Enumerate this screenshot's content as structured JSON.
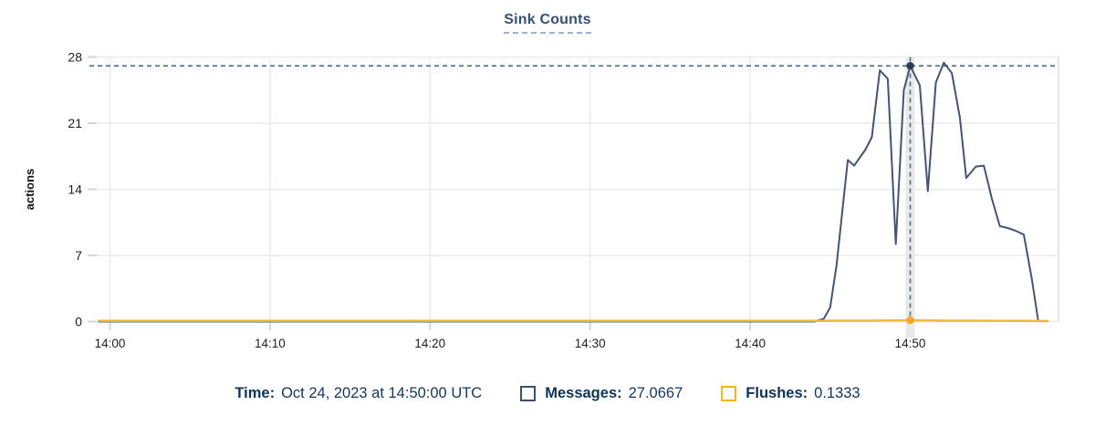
{
  "title": "Sink Counts",
  "colors": {
    "messages_line": "#455571",
    "messages_marker": "#2e3d55",
    "flushes_line": "#f2b632",
    "flushes_marker": "#f5a623",
    "crosshair": "#4d6e86",
    "grid": "#efefef",
    "grid_stub": "#d7d7d7",
    "right_border": "#e6e6e6",
    "hover_band": "#e9e9e9",
    "axis_text": "#1f1f1f",
    "title_text": "#37506f",
    "legend_text": "#12355b"
  },
  "y_axis": {
    "label": "actions",
    "ticks": [
      0,
      7,
      14,
      21,
      28
    ],
    "min": 0,
    "max": 28
  },
  "x_axis": {
    "ticks": [
      {
        "t": 0,
        "label": "14:00"
      },
      {
        "t": 10,
        "label": "14:10"
      },
      {
        "t": 20,
        "label": "14:20"
      },
      {
        "t": 30,
        "label": "14:30"
      },
      {
        "t": 40,
        "label": "14:40"
      },
      {
        "t": 50,
        "label": "14:50"
      }
    ]
  },
  "tooltip": {
    "time_label": "Time:",
    "time_value": "Oct 24, 2023 at 14:50:00 UTC",
    "series": [
      {
        "name": "Messages",
        "label": "Messages:",
        "value": "27.0667",
        "swatch_color": "#3c5169"
      },
      {
        "name": "Flushes",
        "label": "Flushes:",
        "value": "0.1333",
        "swatch_color": "#f7b500"
      }
    ]
  },
  "chart_data": {
    "type": "line",
    "title": "Sink Counts",
    "ylabel": "actions",
    "ylim": [
      0,
      28
    ],
    "x_unit": "minutes after 14:00 UTC, Oct 24 2023",
    "legend_position": "bottom",
    "grid": true,
    "hover": {
      "t": 50,
      "time": "Oct 24, 2023 at 14:50:00 UTC",
      "messages": 27.0667,
      "flushes": 0.1333
    },
    "series": [
      {
        "name": "Messages",
        "points": [
          [
            -0.7,
            0
          ],
          [
            5,
            0
          ],
          [
            10,
            0
          ],
          [
            15,
            0
          ],
          [
            20,
            0
          ],
          [
            25,
            0
          ],
          [
            30,
            0
          ],
          [
            35,
            0
          ],
          [
            40,
            0
          ],
          [
            44,
            0
          ],
          [
            44.6,
            0.3
          ],
          [
            45.0,
            1.5
          ],
          [
            45.4,
            6.0
          ],
          [
            46.1,
            17.1
          ],
          [
            46.5,
            16.5
          ],
          [
            47.2,
            18.2
          ],
          [
            47.6,
            19.5
          ],
          [
            48.1,
            26.6
          ],
          [
            48.6,
            25.7
          ],
          [
            49.1,
            8.2
          ],
          [
            49.6,
            24.5
          ],
          [
            50,
            27.0667
          ],
          [
            50.6,
            25.0
          ],
          [
            51.1,
            13.8
          ],
          [
            51.6,
            25.3
          ],
          [
            52.1,
            27.4
          ],
          [
            52.6,
            26.3
          ],
          [
            53.1,
            21.6
          ],
          [
            53.5,
            15.2
          ],
          [
            54.1,
            16.4
          ],
          [
            54.6,
            16.5
          ],
          [
            55.1,
            13.0
          ],
          [
            55.6,
            10.1
          ],
          [
            56.1,
            9.9
          ],
          [
            56.6,
            9.6
          ],
          [
            57.1,
            9.2
          ],
          [
            57.6,
            4.5
          ],
          [
            58.0,
            0.05
          ],
          [
            58.6,
            0.05
          ]
        ]
      },
      {
        "name": "Flushes",
        "points": [
          [
            -0.7,
            0.08
          ],
          [
            10,
            0.08
          ],
          [
            20,
            0.08
          ],
          [
            30,
            0.08
          ],
          [
            40,
            0.08
          ],
          [
            44,
            0.08
          ],
          [
            46,
            0.1
          ],
          [
            48,
            0.1
          ],
          [
            50,
            0.1333
          ],
          [
            52,
            0.1
          ],
          [
            54,
            0.09
          ],
          [
            56,
            0.08
          ],
          [
            58.6,
            0.06
          ]
        ]
      }
    ]
  }
}
